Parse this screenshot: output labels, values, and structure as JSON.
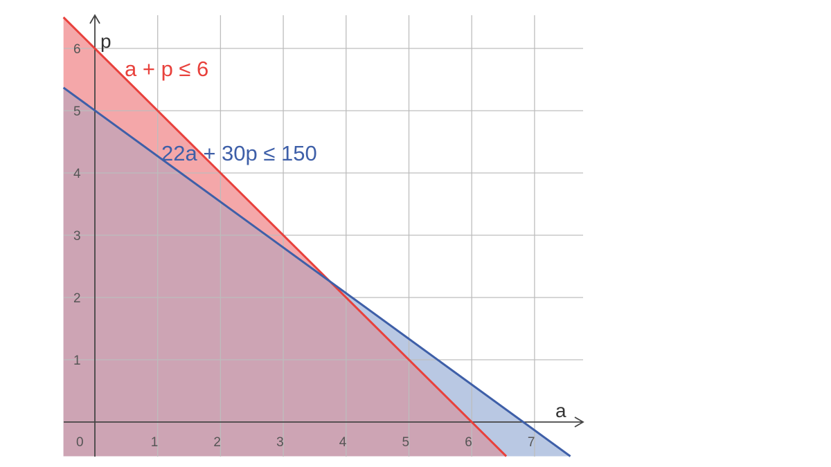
{
  "chart_data": {
    "type": "line",
    "xlabel": "a",
    "ylabel": "p",
    "xlim": [
      -0.5,
      7.8
    ],
    "ylim": [
      -0.55,
      6.7
    ],
    "grid": true,
    "x_ticks": [
      "0",
      "1",
      "2",
      "3",
      "4",
      "5",
      "6",
      "7"
    ],
    "y_ticks": [
      "1",
      "2",
      "3",
      "4",
      "5",
      "6"
    ],
    "series": [
      {
        "label": "a + p ≤ 6",
        "color": "#e8413c",
        "fill": "#f4a7a9",
        "x": [
          -0.5,
          6.55
        ],
        "y": [
          6.5,
          -0.55
        ]
      },
      {
        "label": "22a + 30p ≤ 150",
        "color": "#3e5fa8",
        "fill": "#b9c8e3",
        "x": [
          -0.5,
          7.57
        ],
        "y": [
          5.37,
          -0.55
        ]
      }
    ],
    "overlap_fill": "#cda4b4"
  }
}
